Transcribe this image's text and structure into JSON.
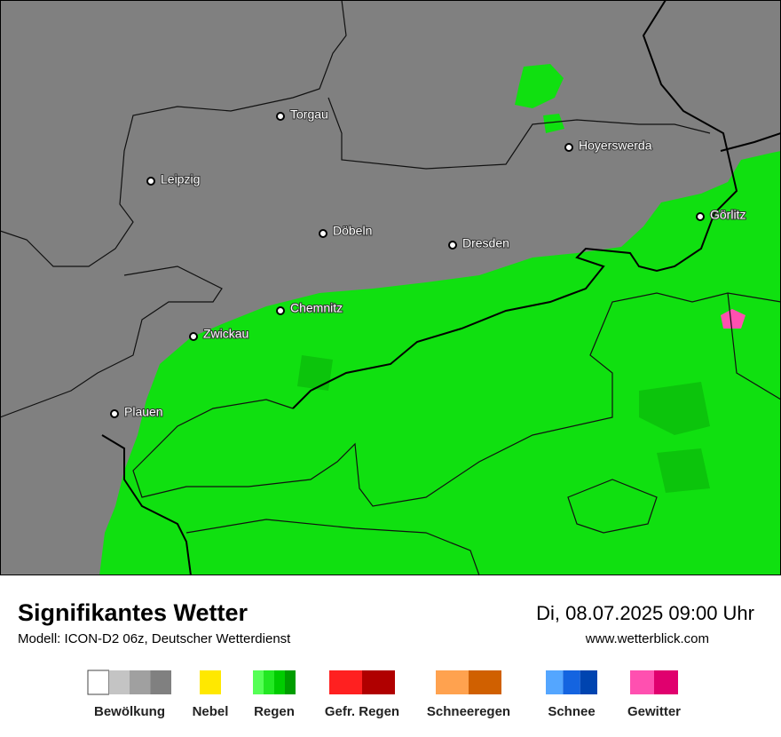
{
  "map": {
    "cities": [
      "Torgau",
      "Hoyerswerda",
      "Leipzig",
      "Görlitz",
      "Döbeln",
      "Dresden",
      "Chemnitz",
      "Zwickau",
      "Plauen"
    ]
  },
  "footer": {
    "title": "Signifikantes Wetter",
    "subtitle": "Modell: ICON-D2 06z, Deutscher Wetterdienst",
    "datetime": "Di, 08.07.2025 09:00 Uhr",
    "url": "www.wetterblick.com"
  },
  "legend": [
    {
      "label": "Bewölkung",
      "colors": [
        "#ffffff",
        "#c4c4c4",
        "#a0a0a0",
        "#808080"
      ]
    },
    {
      "label": "Nebel",
      "colors": [
        "#ffe800"
      ]
    },
    {
      "label": "Regen",
      "colors": [
        "#55ff55",
        "#22e822",
        "#00cc00",
        "#009d00"
      ]
    },
    {
      "label": "Gefr. Regen",
      "colors": [
        "#ff2020",
        "#b00000"
      ]
    },
    {
      "label": "Schneeregen",
      "colors": [
        "#ffa24f",
        "#d06000"
      ]
    },
    {
      "label": "Schnee",
      "colors": [
        "#54a6ff",
        "#1464e0",
        "#0044b0"
      ]
    },
    {
      "label": "Gewitter",
      "colors": [
        "#ff50b0",
        "#e0006e"
      ]
    }
  ]
}
